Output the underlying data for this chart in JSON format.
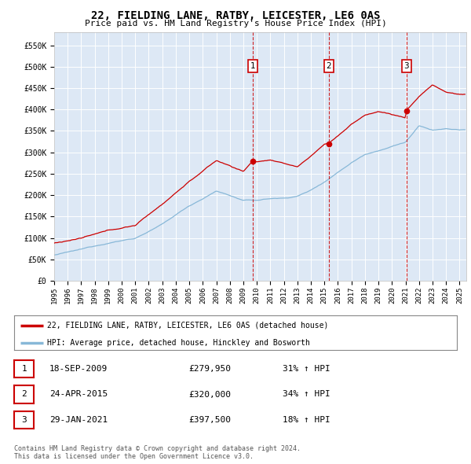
{
  "title": "22, FIELDING LANE, RATBY, LEICESTER, LE6 0AS",
  "subtitle": "Price paid vs. HM Land Registry's House Price Index (HPI)",
  "ylabel_ticks": [
    "£0",
    "£50K",
    "£100K",
    "£150K",
    "£200K",
    "£250K",
    "£300K",
    "£350K",
    "£400K",
    "£450K",
    "£500K",
    "£550K"
  ],
  "ytick_values": [
    0,
    50000,
    100000,
    150000,
    200000,
    250000,
    300000,
    350000,
    400000,
    450000,
    500000,
    550000
  ],
  "ylim": [
    0,
    580000
  ],
  "xmin_year": 1995.0,
  "xmax_year": 2025.5,
  "background_color": "#ffffff",
  "plot_bg_color": "#dde8f5",
  "grid_color": "#ffffff",
  "red_line_color": "#cc0000",
  "blue_line_color": "#88b8d8",
  "purchase_marker_color": "#cc0000",
  "vline_color": "#cc0000",
  "transaction_labels": [
    "1",
    "2",
    "3"
  ],
  "transaction_dates_decimal": [
    2009.72,
    2015.32,
    2021.08
  ],
  "transaction_prices": [
    279950,
    320000,
    397500
  ],
  "transaction_display": [
    {
      "num": "1",
      "date": "18-SEP-2009",
      "price": "£279,950",
      "pct": "31%",
      "dir": "↑",
      "ref": "HPI"
    },
    {
      "num": "2",
      "date": "24-APR-2015",
      "price": "£320,000",
      "pct": "34%",
      "dir": "↑",
      "ref": "HPI"
    },
    {
      "num": "3",
      "date": "29-JAN-2021",
      "price": "£397,500",
      "pct": "18%",
      "dir": "↑",
      "ref": "HPI"
    }
  ],
  "legend_red_label": "22, FIELDING LANE, RATBY, LEICESTER, LE6 0AS (detached house)",
  "legend_blue_label": "HPI: Average price, detached house, Hinckley and Bosworth",
  "footnote": "Contains HM Land Registry data © Crown copyright and database right 2024.\nThis data is licensed under the Open Government Licence v3.0.",
  "xtick_years": [
    1995,
    1996,
    1997,
    1998,
    1999,
    2000,
    2001,
    2002,
    2003,
    2004,
    2005,
    2006,
    2007,
    2008,
    2009,
    2010,
    2011,
    2012,
    2013,
    2014,
    2015,
    2016,
    2017,
    2018,
    2019,
    2020,
    2021,
    2022,
    2023,
    2024,
    2025
  ],
  "hpi_known_years": [
    1995,
    1997,
    1999,
    2001,
    2003,
    2005,
    2007,
    2008,
    2009,
    2010,
    2011,
    2012,
    2013,
    2014,
    2015,
    2016,
    2017,
    2018,
    2019,
    2020,
    2021,
    2022,
    2023,
    2024,
    2025
  ],
  "hpi_known_vals": [
    60000,
    72000,
    88000,
    100000,
    132000,
    175000,
    210000,
    200000,
    188000,
    188000,
    192000,
    193000,
    198000,
    212000,
    232000,
    255000,
    278000,
    298000,
    308000,
    318000,
    328000,
    365000,
    355000,
    358000,
    355000
  ],
  "red_known_years": [
    1995,
    1997,
    1999,
    2001,
    2003,
    2005,
    2007,
    2008,
    2009,
    2009.72,
    2010,
    2011,
    2012,
    2013,
    2014,
    2015,
    2015.32,
    2016,
    2017,
    2018,
    2019,
    2020,
    2021,
    2021.08,
    2022,
    2023,
    2024,
    2025
  ],
  "red_known_vals": [
    88000,
    100000,
    115000,
    128000,
    178000,
    232000,
    280000,
    268000,
    255000,
    279950,
    278000,
    282000,
    272000,
    265000,
    290000,
    318000,
    320000,
    338000,
    365000,
    385000,
    395000,
    388000,
    380000,
    397500,
    430000,
    458000,
    440000,
    435000
  ]
}
